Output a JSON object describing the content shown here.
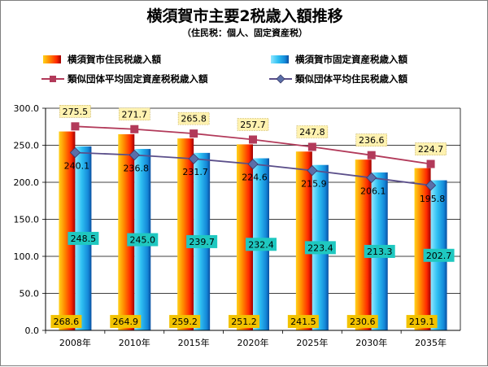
{
  "chart_data": {
    "type": "bar",
    "title": "横須賀市主要2税歳入額推移",
    "subtitle": "（住民税：個人、固定資産税）",
    "categories": [
      "2008年",
      "2010年",
      "2015年",
      "2020年",
      "2025年",
      "2030年",
      "2035年"
    ],
    "ylim": [
      0,
      300
    ],
    "yticks": [
      "0.0",
      "50.0",
      "100.0",
      "150.0",
      "200.0",
      "250.0",
      "300.0"
    ],
    "grid": true,
    "legend_position": "top",
    "series": [
      {
        "name": "横須賀市住民税歳入額",
        "kind": "bar",
        "color": "#ff3b00",
        "values": [
          268.6,
          264.9,
          259.2,
          251.2,
          241.5,
          230.6,
          219.1
        ],
        "labels": [
          "268.6",
          "264.9",
          "259.2",
          "251.2",
          "241.5",
          "230.6",
          "219.1"
        ]
      },
      {
        "name": "横須賀市固定資産税歳入額",
        "kind": "bar",
        "color": "#1f9fe8",
        "values": [
          248.5,
          245.0,
          239.7,
          232.4,
          223.4,
          213.3,
          202.7
        ],
        "labels": [
          "248.5",
          "245.0",
          "239.7",
          "232.4",
          "223.4",
          "213.3",
          "202.7"
        ]
      },
      {
        "name": "類似団体平均固定資産税税歳入額",
        "kind": "line",
        "color": "#b23a5a",
        "marker": "square",
        "values": [
          275.5,
          271.7,
          265.8,
          257.7,
          247.8,
          236.6,
          224.7
        ],
        "labels": [
          "275.5",
          "271.7",
          "265.8",
          "257.7",
          "247.8",
          "236.6",
          "224.7"
        ]
      },
      {
        "name": "類似団体平均住民税歳入額",
        "kind": "line",
        "color": "#5b4f8a",
        "marker": "diamond",
        "values": [
          240.1,
          236.8,
          231.7,
          224.6,
          215.9,
          206.1,
          195.8
        ],
        "labels": [
          "240.1",
          "236.8",
          "231.7",
          "224.6",
          "215.9",
          "206.1",
          "195.8"
        ]
      }
    ]
  }
}
